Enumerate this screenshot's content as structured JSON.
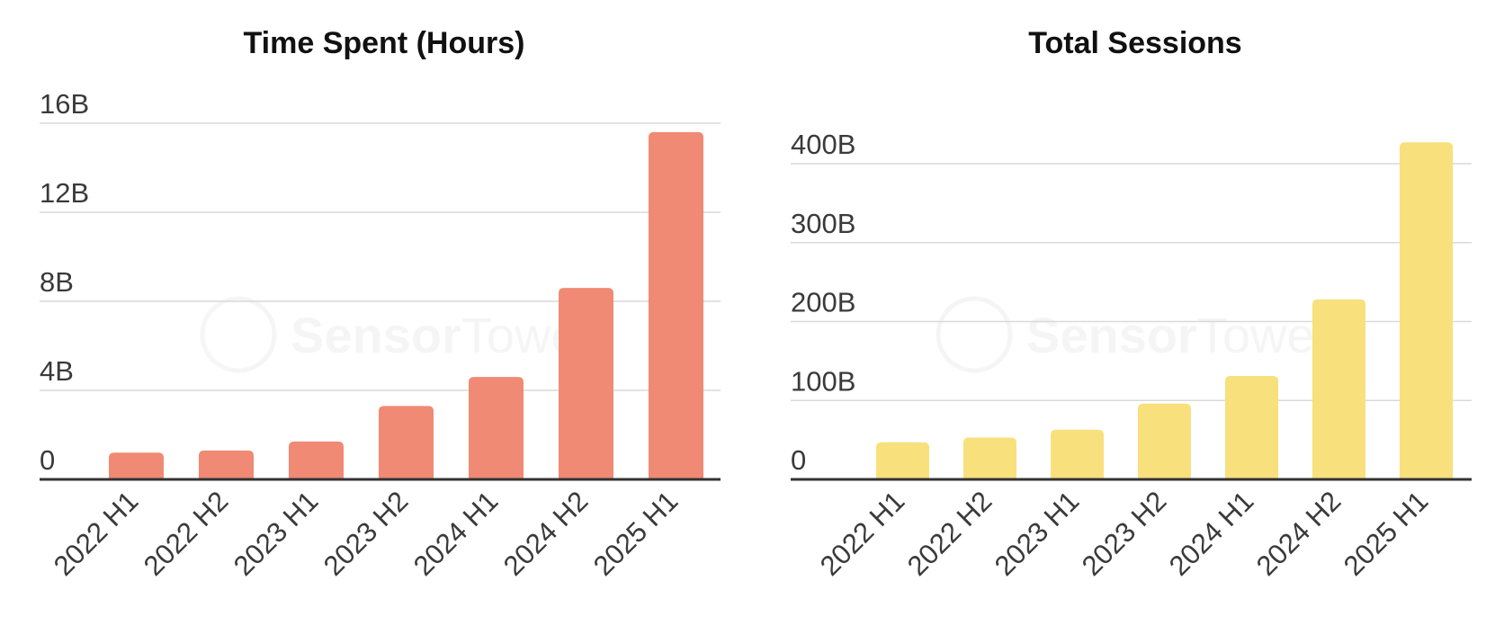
{
  "chart_data": [
    {
      "type": "bar",
      "title": "Time Spent (Hours)",
      "categories": [
        "2022 H1",
        "2022 H2",
        "2023 H1",
        "2023 H2",
        "2024 H1",
        "2024 H2",
        "2025 H1"
      ],
      "values": [
        1.2,
        1.3,
        1.7,
        3.3,
        4.6,
        8.6,
        15.6
      ],
      "value_unit": "billions of hours",
      "y_ticks": [
        {
          "value": 0,
          "label": "0"
        },
        {
          "value": 4,
          "label": "4B"
        },
        {
          "value": 8,
          "label": "8B"
        },
        {
          "value": 12,
          "label": "12B"
        },
        {
          "value": 16,
          "label": "16B"
        }
      ],
      "ylim": [
        0,
        16
      ],
      "xlabel": "",
      "ylabel": "",
      "grid": true,
      "legend": "none",
      "color": "#f08a74"
    },
    {
      "type": "bar",
      "title": "Total Sessions",
      "categories": [
        "2022 H1",
        "2022 H2",
        "2023 H1",
        "2023 H2",
        "2024 H1",
        "2024 H2",
        "2025 H1"
      ],
      "values": [
        47,
        53,
        63,
        96,
        131,
        228,
        427
      ],
      "value_unit": "billions of sessions",
      "y_ticks": [
        {
          "value": 0,
          "label": "0"
        },
        {
          "value": 100,
          "label": "100B"
        },
        {
          "value": 200,
          "label": "200B"
        },
        {
          "value": 300,
          "label": "300B"
        },
        {
          "value": 400,
          "label": "400B"
        }
      ],
      "ylim": [
        0,
        400
      ],
      "xlabel": "",
      "ylabel": "",
      "grid": true,
      "legend": "none",
      "color": "#f8e07d"
    }
  ],
  "watermark": {
    "brand_bold": "Sensor",
    "brand_light": "Tower",
    "icon": "sensor-tower-logo-icon"
  }
}
